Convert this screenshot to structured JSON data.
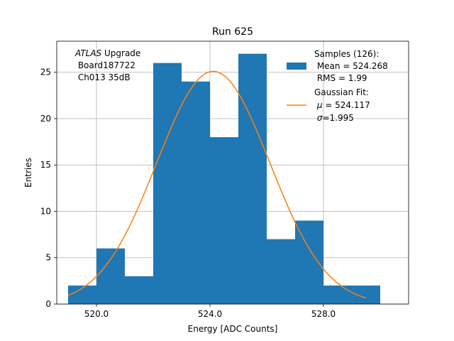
{
  "chart_data": {
    "type": "histogram",
    "title": "Run 625",
    "xlabel": "Energy [ADC Counts]",
    "ylabel": "Entries",
    "xlim": [
      518.6,
      531.0
    ],
    "ylim": [
      0,
      28.35
    ],
    "grid": true,
    "xticks": [
      520,
      524,
      528
    ],
    "xtick_labels": [
      "520.0",
      "524.0",
      "528.0"
    ],
    "yticks": [
      0,
      5,
      10,
      15,
      20,
      25
    ],
    "yticklabels": [
      "0",
      "5",
      "10",
      "15",
      "20",
      "25"
    ],
    "bins": [
      {
        "x0": 519,
        "x1": 520,
        "count": 2
      },
      {
        "x0": 520,
        "x1": 521,
        "count": 6
      },
      {
        "x0": 521,
        "x1": 522,
        "count": 3
      },
      {
        "x0": 522,
        "x1": 523,
        "count": 26
      },
      {
        "x0": 523,
        "x1": 524,
        "count": 24
      },
      {
        "x0": 524,
        "x1": 525,
        "count": 18
      },
      {
        "x0": 525,
        "x1": 526,
        "count": 27
      },
      {
        "x0": 526,
        "x1": 527,
        "count": 7
      },
      {
        "x0": 527,
        "x1": 528,
        "count": 9
      },
      {
        "x0": 528,
        "x1": 529,
        "count": 2
      },
      {
        "x0": 529,
        "x1": 530,
        "count": 2
      }
    ],
    "fit": {
      "type": "gaussian",
      "mu": 524.117,
      "sigma": 1.995,
      "amplitude": 25.1,
      "x_range": [
        519,
        529.5
      ]
    },
    "series_colors": {
      "histogram": "#1f77b4",
      "fit": "#ff7f0e"
    },
    "annotation": {
      "italic": "ATLAS",
      "line1_rest": " Upgrade",
      "line2": " Board187722",
      "line3": " Ch013 35dB"
    },
    "legend": {
      "position": "upper-right",
      "histogram_lines": [
        "Samples (126):",
        " Mean = 524.268",
        " RMS = 1.99"
      ],
      "fit_line1": "Gaussian Fit:",
      "fit_mu_symbol": "μ",
      "fit_mu_rest": " = 524.117",
      "fit_sigma_symbol": "σ",
      "fit_sigma_rest": "=1.995"
    }
  }
}
